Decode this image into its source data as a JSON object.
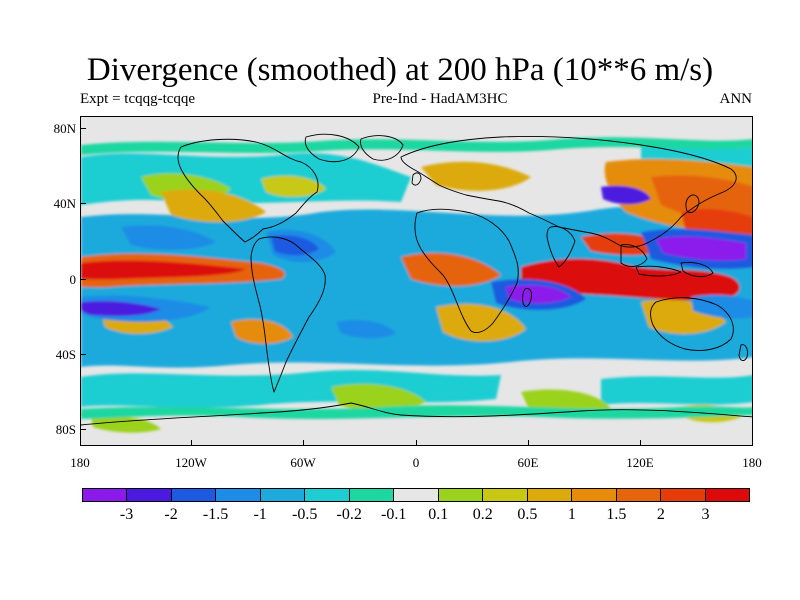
{
  "title": "Divergence (smoothed) at 200 hPa (10**6 m/s)",
  "subtitle_left": "Expt = tcqqg-tcqqe",
  "subtitle_center": "Pre-Ind - HadAM3HC",
  "subtitle_right": "ANN",
  "lat_labels": [
    "80N",
    "40N",
    "0",
    "40S",
    "80S"
  ],
  "lon_labels": [
    "180",
    "120W",
    "60W",
    "0",
    "60E",
    "120E",
    "180"
  ],
  "colorbar": {
    "colors": [
      "#8c1aeb",
      "#4b1ae0",
      "#1e5ae0",
      "#1e8ce6",
      "#1eaadc",
      "#1ecdd2",
      "#1ed7a0",
      "#e6e6e6",
      "#9bd21e",
      "#c8c814",
      "#dcaa0a",
      "#e68c0a",
      "#e6640a",
      "#e63c0a",
      "#dc0a0a"
    ],
    "labels": [
      "-3",
      "-2",
      "-1.5",
      "-1",
      "-0.5",
      "-0.2",
      "-0.1",
      "0.1",
      "0.2",
      "0.5",
      "1",
      "1.5",
      "2",
      "3"
    ]
  }
}
